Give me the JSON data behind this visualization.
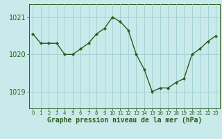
{
  "x": [
    0,
    1,
    2,
    3,
    4,
    5,
    6,
    7,
    8,
    9,
    10,
    11,
    12,
    13,
    14,
    15,
    16,
    17,
    18,
    19,
    20,
    21,
    22,
    23
  ],
  "y": [
    1020.55,
    1020.3,
    1020.3,
    1020.3,
    1020.0,
    1020.0,
    1020.15,
    1020.3,
    1020.55,
    1020.7,
    1021.0,
    1020.88,
    1020.65,
    1020.0,
    1019.6,
    1019.0,
    1019.1,
    1019.1,
    1019.25,
    1019.35,
    1020.0,
    1020.15,
    1020.35,
    1020.5
  ],
  "background_color": "#c8eaea",
  "line_color": "#2d5a1b",
  "marker_color": "#2d5a1b",
  "grid_color": "#9ecfcf",
  "yticks": [
    1019,
    1020,
    1021
  ],
  "ylim": [
    1018.55,
    1021.35
  ],
  "xlim": [
    -0.5,
    23.5
  ],
  "xlabel": "Graphe pression niveau de la mer (hPa)",
  "xlabel_fontsize": 7,
  "ytick_fontsize": 7,
  "xtick_fontsize": 5,
  "figsize": [
    3.2,
    2.0
  ],
  "dpi": 100
}
